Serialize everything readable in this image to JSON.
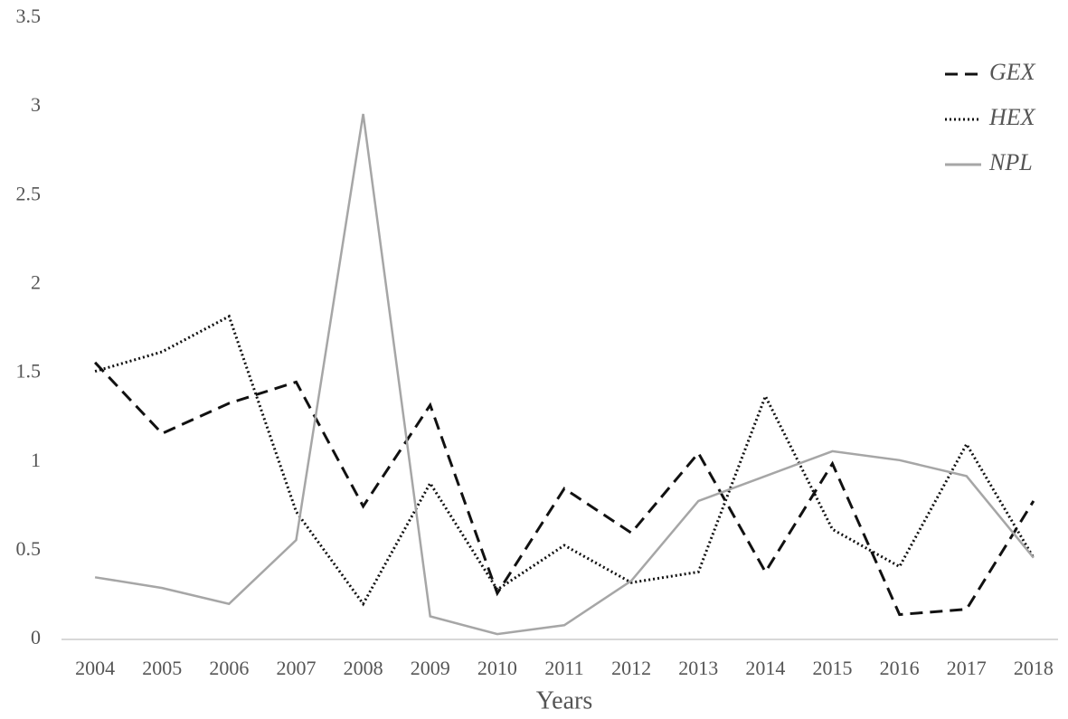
{
  "chart_data": {
    "type": "line",
    "xlabel": "Years",
    "categories": [
      "2004",
      "2005",
      "2006",
      "2007",
      "2008",
      "2009",
      "2010",
      "2011",
      "2012",
      "2013",
      "2014",
      "2015",
      "2016",
      "2017",
      "2018"
    ],
    "series": [
      {
        "name": "GEX",
        "color": "#111111",
        "dash": "dashed",
        "values": [
          1.56,
          1.16,
          1.33,
          1.45,
          0.75,
          1.32,
          0.26,
          0.85,
          0.6,
          1.05,
          0.38,
          0.99,
          0.14,
          0.17,
          0.78
        ]
      },
      {
        "name": "HEX",
        "color": "#111111",
        "dash": "dotted",
        "values": [
          1.51,
          1.62,
          1.82,
          0.72,
          0.2,
          0.88,
          0.28,
          0.53,
          0.32,
          0.38,
          1.37,
          0.62,
          0.41,
          1.1,
          0.46
        ]
      },
      {
        "name": "NPL",
        "color": "#a6a6a6",
        "dash": "solid",
        "values": [
          0.35,
          0.29,
          0.2,
          0.56,
          2.96,
          0.13,
          0.03,
          0.08,
          0.33,
          0.78,
          0.92,
          1.06,
          1.01,
          0.92,
          0.46
        ]
      }
    ],
    "ylim": [
      0,
      3.5
    ],
    "yticks": [
      0,
      0.5,
      1,
      1.5,
      2,
      2.5,
      3,
      3.5
    ],
    "grid": false,
    "legend": "top-right"
  }
}
